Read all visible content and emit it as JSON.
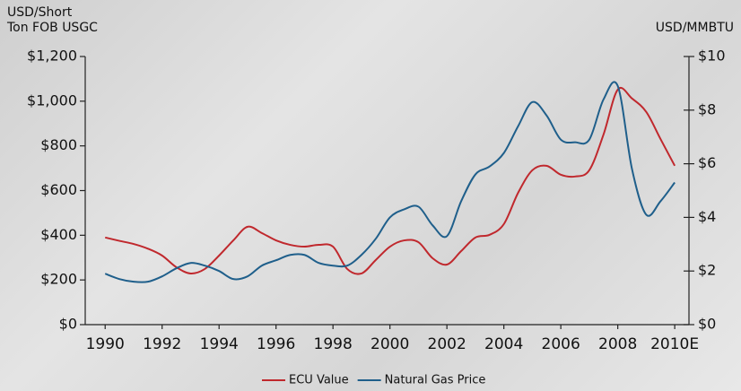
{
  "chart_data": {
    "type": "line",
    "ylabel": [
      "USD/Short",
      "Ton FOB USGC"
    ],
    "y2label": "USD/MMBTU",
    "x": [
      1990,
      1990.5,
      1991,
      1991.5,
      1992,
      1992.5,
      1993,
      1993.5,
      1994,
      1994.5,
      1995,
      1995.5,
      1996,
      1996.5,
      1997,
      1997.5,
      1998,
      1998.5,
      1999,
      1999.5,
      2000,
      2000.5,
      2001,
      2001.5,
      2002,
      2002.5,
      2003,
      2003.5,
      2004,
      2004.5,
      2005,
      2005.5,
      2006,
      2006.5,
      2007,
      2007.5,
      2008,
      2008.5,
      2009,
      2009.5,
      2010
    ],
    "series": [
      {
        "name": "ECU Value",
        "color": "#c0282d",
        "axis": "y",
        "values": [
          390,
          375,
          361,
          340,
          309,
          257,
          229,
          249,
          309,
          377,
          438,
          410,
          377,
          357,
          349,
          357,
          349,
          249,
          229,
          289,
          349,
          377,
          369,
          297,
          269,
          329,
          390,
          402,
          450,
          590,
          691,
          711,
          671,
          663,
          691,
          851,
          1052,
          1012,
          952,
          831,
          711
        ]
      },
      {
        "name": "Natural Gas Price",
        "color": "#1f5f8b",
        "axis": "y2",
        "values": [
          1.9,
          1.7,
          1.6,
          1.6,
          1.8,
          2.1,
          2.3,
          2.2,
          2.0,
          1.7,
          1.8,
          2.2,
          2.4,
          2.6,
          2.6,
          2.3,
          2.2,
          2.2,
          2.6,
          3.2,
          4.0,
          4.3,
          4.4,
          3.7,
          3.3,
          4.6,
          5.6,
          5.9,
          6.4,
          7.4,
          8.3,
          7.8,
          6.9,
          6.8,
          6.9,
          8.4,
          8.9,
          5.8,
          4.1,
          4.6,
          5.3
        ]
      }
    ],
    "xlim": [
      1989.3,
      2010.5
    ],
    "xticks": [
      1990,
      1992,
      1994,
      1996,
      1998,
      2000,
      2002,
      2004,
      2006,
      2008,
      {
        "value": 2010,
        "label": "2010E"
      }
    ],
    "ylim": [
      0,
      1200
    ],
    "yticks": [
      {
        "value": 0,
        "label": "$0"
      },
      {
        "value": 200,
        "label": "$200"
      },
      {
        "value": 400,
        "label": "$400"
      },
      {
        "value": 600,
        "label": "$600"
      },
      {
        "value": 800,
        "label": "$800"
      },
      {
        "value": 1000,
        "label": "$1,000"
      },
      {
        "value": 1200,
        "label": "$1,200"
      }
    ],
    "y2lim": [
      0,
      10
    ],
    "y2ticks": [
      {
        "value": 0,
        "label": "$0"
      },
      {
        "value": 2,
        "label": "$2"
      },
      {
        "value": 4,
        "label": "$4"
      },
      {
        "value": 6,
        "label": "$6"
      },
      {
        "value": 8,
        "label": "$8"
      },
      {
        "value": 10,
        "label": "$10"
      }
    ],
    "legend": "bottom"
  }
}
